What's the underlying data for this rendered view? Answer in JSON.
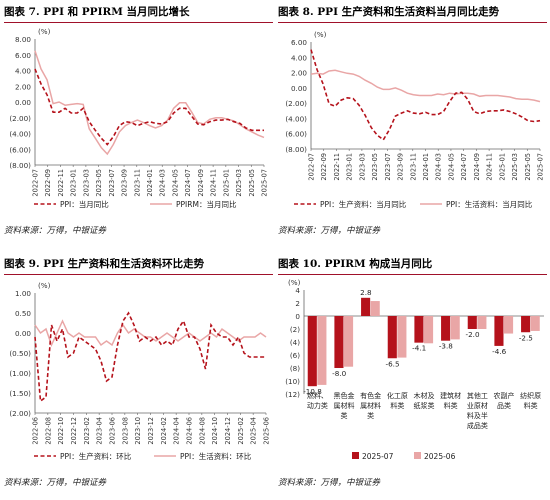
{
  "panels": [
    {
      "title": "图表 7.  PPI 和 PPIRM 当月同比增长",
      "source": "资料来源：万得，中银证券"
    },
    {
      "title": "图表 8. PPI 生产资料和生活资料当月同比走势",
      "source": "资料来源：万得，中银证券"
    },
    {
      "title": "图表 9. PPI 生产资料和生活资料环比走势",
      "source": "资料来源：万得，中银证券"
    },
    {
      "title": "图表 10. PPIRM 构成当月同比",
      "source": "资料来源：万得，中银证券"
    }
  ],
  "colors": {
    "dark_red": "#b5121b",
    "light_pink": "#e9a6a6",
    "title_rule": "#a0112a"
  },
  "chart_data": [
    {
      "type": "line",
      "unit_label": "(%)",
      "x_ticks": [
        "2022-07",
        "2022-09",
        "2022-11",
        "2023-01",
        "2023-03",
        "2023-05",
        "2023-07",
        "2023-09",
        "2023-11",
        "2024-01",
        "2024-03",
        "2024-05",
        "2024-07",
        "2024-09",
        "2024-11",
        "2025-01",
        "2025-03",
        "2025-05",
        "2025-07"
      ],
      "ylim": [
        -8,
        8
      ],
      "y_ticks": [
        "8.00",
        "6.00",
        "4.00",
        "2.00",
        "0.00",
        "(2.00)",
        "(4.00)",
        "(6.00)",
        "(8.00)"
      ],
      "series": [
        {
          "name": "PPI：当月同比",
          "style": "dashed",
          "color": "#b5121b",
          "values": [
            4.2,
            2.3,
            0.9,
            -1.3,
            -1.3,
            -0.8,
            -1.4,
            -1.4,
            -0.8,
            -2.5,
            -3.6,
            -4.6,
            -5.4,
            -4.4,
            -3.0,
            -2.5,
            -2.6,
            -3.0,
            -2.7,
            -2.5,
            -2.7,
            -2.8,
            -2.5,
            -1.4,
            -0.8,
            -0.8,
            -1.8,
            -2.8,
            -2.9,
            -2.5,
            -2.3,
            -2.3,
            -2.2,
            -2.5,
            -2.7,
            -3.3,
            -3.6,
            -3.6,
            -3.6
          ]
        },
        {
          "name": "PPIRM：当月同比",
          "style": "solid",
          "color": "#e9a6a6",
          "values": [
            6.5,
            4.2,
            2.8,
            -0.2,
            0.0,
            -0.4,
            -0.3,
            -0.2,
            -0.3,
            -3.4,
            -4.6,
            -5.8,
            -6.6,
            -5.4,
            -3.8,
            -3.0,
            -2.6,
            -2.3,
            -2.6,
            -3.0,
            -3.3,
            -3.0,
            -2.3,
            -0.8,
            -0.1,
            -0.1,
            -1.3,
            -2.6,
            -2.8,
            -2.2,
            -2.0,
            -2.0,
            -2.2,
            -2.4,
            -2.9,
            -3.4,
            -3.8,
            -4.2,
            -4.5
          ]
        }
      ]
    },
    {
      "type": "line",
      "unit_label": "(%)",
      "x_ticks": [
        "2022-07",
        "2022-09",
        "2022-11",
        "2023-01",
        "2023-03",
        "2023-05",
        "2023-07",
        "2023-09",
        "2023-11",
        "2024-01",
        "2024-03",
        "2024-05",
        "2024-07",
        "2024-09",
        "2024-11",
        "2025-01",
        "2025-03",
        "2025-05",
        "2025-07"
      ],
      "ylim": [
        -8,
        6
      ],
      "y_ticks": [
        "6.00",
        "4.00",
        "2.00",
        "0.00",
        "(2.00)",
        "(4.00)",
        "(6.00)",
        "(8.00)"
      ],
      "series": [
        {
          "name": "PPI：生产资料：当月同比",
          "style": "dashed",
          "color": "#b5121b",
          "values": [
            5.0,
            2.4,
            0.5,
            -2.1,
            -2.4,
            -1.6,
            -1.3,
            -1.4,
            -2.3,
            -3.6,
            -5.2,
            -6.2,
            -6.8,
            -5.5,
            -3.7,
            -3.3,
            -3.0,
            -3.3,
            -3.4,
            -3.2,
            -3.5,
            -3.5,
            -3.1,
            -1.8,
            -0.7,
            -0.6,
            -1.5,
            -3.1,
            -3.4,
            -3.1,
            -3.0,
            -3.0,
            -2.9,
            -3.1,
            -3.4,
            -3.8,
            -4.3,
            -4.4,
            -4.3
          ]
        },
        {
          "name": "PPI：生活资料：当月同比",
          "style": "solid",
          "color": "#e9a6a6",
          "values": [
            1.8,
            1.9,
            1.8,
            2.2,
            2.3,
            2.1,
            1.9,
            1.8,
            1.5,
            1.0,
            0.6,
            0.1,
            -0.2,
            -0.2,
            0.0,
            -0.3,
            -0.7,
            -0.9,
            -1.0,
            -1.0,
            -1.0,
            -0.8,
            -0.9,
            -0.7,
            -0.8,
            -0.7,
            -0.7,
            -0.8,
            -1.1,
            -1.0,
            -1.0,
            -1.0,
            -1.1,
            -1.2,
            -1.4,
            -1.5,
            -1.5,
            -1.6,
            -1.8
          ]
        }
      ]
    },
    {
      "type": "line",
      "unit_label": "(%)",
      "x_ticks": [
        "2022-06",
        "2022-08",
        "2022-10",
        "2022-12",
        "2023-02",
        "2023-04",
        "2023-06",
        "2023-08",
        "2023-10",
        "2023-12",
        "2024-02",
        "2024-04",
        "2024-06",
        "2024-08",
        "2024-10",
        "2024-12",
        "2025-02",
        "2025-04",
        "2025-06"
      ],
      "ylim": [
        -2,
        1
      ],
      "y_ticks": [
        "1.00",
        "0.50",
        "0.00",
        "(0.50)",
        "(1.00)",
        "(1.50)",
        "(2.00)"
      ],
      "series": [
        {
          "name": "PPI：生产资料：环比",
          "style": "dashed",
          "color": "#b5121b",
          "values": [
            -0.1,
            -1.7,
            -1.6,
            0.2,
            -0.2,
            0.1,
            -0.6,
            -0.5,
            -0.1,
            -0.2,
            -0.3,
            -0.4,
            -0.7,
            -1.2,
            -1.1,
            -0.3,
            0.3,
            0.5,
            0.2,
            -0.2,
            -0.1,
            -0.2,
            -0.1,
            -0.3,
            -0.2,
            -0.3,
            0.1,
            0.3,
            -0.1,
            -0.1,
            -0.4,
            -0.9,
            0.2,
            0.0,
            -0.1,
            -0.1,
            -0.3,
            -0.1,
            -0.5,
            -0.6,
            -0.6,
            -0.6,
            -0.6
          ]
        },
        {
          "name": "PPI：生活资料：环比",
          "style": "solid",
          "color": "#e9a6a6",
          "values": [
            0.2,
            0.0,
            0.1,
            -0.3,
            0.0,
            0.3,
            0.0,
            -0.1,
            0.0,
            -0.1,
            -0.1,
            -0.1,
            -0.3,
            -0.2,
            -0.3,
            0.0,
            0.2,
            0.0,
            0.1,
            0.0,
            -0.1,
            -0.1,
            -0.2,
            -0.1,
            0.0,
            -0.1,
            -0.2,
            -0.1,
            0.0,
            -0.1,
            -0.2,
            -0.1,
            0.0,
            -0.1,
            0.1,
            0.0,
            -0.1,
            -0.2,
            -0.1,
            -0.1,
            -0.1,
            0.0,
            -0.1
          ]
        }
      ]
    },
    {
      "type": "bar",
      "unit_label": "(%)",
      "categories": [
        "燃料、\n动力类",
        "黑色金\n属材料\n类",
        "有色金\n属材料\n类",
        "化工原\n料类",
        "木材及\n纸浆类",
        "建筑材\n料类",
        "其他工\n业原材\n料及半\n成品类",
        "农副产\n品类",
        "纺织原\n料类"
      ],
      "ylim": [
        -12,
        4
      ],
      "y_ticks": [
        "4",
        "2",
        "0",
        "(2)",
        "(4)",
        "(6)",
        "(8)",
        "(10)",
        "(12)"
      ],
      "series": [
        {
          "name": "2025-07",
          "color": "#b5121b",
          "values": [
            -10.8,
            -8.0,
            2.8,
            -6.5,
            -4.1,
            -3.8,
            -2.0,
            -4.6,
            -2.5
          ]
        },
        {
          "name": "2025-06",
          "color": "#e9a6a6",
          "values": [
            -10.6,
            -7.8,
            2.3,
            -6.4,
            -4.2,
            -3.6,
            -2.0,
            -2.7,
            -2.3
          ]
        }
      ],
      "data_labels": [
        "-10.8",
        "-8.0",
        "2.8",
        "-6.5",
        "-4.1",
        "-3.8",
        "-2.0",
        "-4.6",
        "-2.5"
      ]
    }
  ]
}
